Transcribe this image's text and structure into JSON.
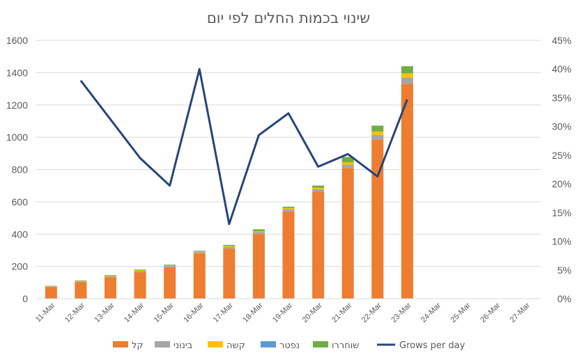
{
  "chart_data": {
    "type": "bar",
    "title": "שינוי בכמות החלים לפי יום",
    "categories": [
      "11-Mar",
      "12-Mar",
      "13-Mar",
      "14-Mar",
      "15-Mar",
      "16-Mar",
      "17-Mar",
      "18-Mar",
      "19-Mar",
      "20-Mar",
      "21-Mar",
      "22-Mar",
      "23-Mar",
      "24-Mar",
      "25-Mar",
      "26-Mar",
      "27-Mar"
    ],
    "stacked": true,
    "ylim": [
      0,
      1600
    ],
    "yticks": [
      0,
      200,
      400,
      600,
      800,
      1000,
      1200,
      1400,
      1600
    ],
    "y2lim": [
      0,
      0.45
    ],
    "y2ticks": [
      "0%",
      "5%",
      "10%",
      "15%",
      "20%",
      "25%",
      "30%",
      "35%",
      "40%",
      "45%"
    ],
    "gridlines": true,
    "legend_position": "bottom",
    "series": [
      {
        "name": "קל",
        "color": "#ED7D31",
        "values": [
          73,
          103,
          132,
          165,
          195,
          280,
          310,
          400,
          540,
          660,
          810,
          985,
          1330,
          null,
          null,
          null,
          null
        ]
      },
      {
        "name": "בינוני",
        "color": "#A5A5A5",
        "values": [
          3,
          5,
          6,
          8,
          8,
          8,
          10,
          12,
          15,
          18,
          20,
          30,
          40,
          null,
          null,
          null,
          null
        ]
      },
      {
        "name": "קשה",
        "color": "#FFC000",
        "values": [
          2,
          3,
          4,
          4,
          4,
          5,
          6,
          6,
          7,
          10,
          15,
          20,
          25,
          null,
          null,
          null,
          null
        ]
      },
      {
        "name": "נפטר",
        "color": "#5B9BD5",
        "values": [
          0,
          0,
          0,
          0,
          0,
          0,
          0,
          0,
          0,
          0,
          0,
          1,
          1,
          null,
          null,
          null,
          null
        ]
      },
      {
        "name": "שוחררו",
        "color": "#70AD47",
        "values": [
          2,
          3,
          4,
          4,
          4,
          4,
          7,
          12,
          8,
          13,
          33,
          36,
          44,
          null,
          null,
          null,
          null
        ]
      }
    ],
    "line_series": {
      "name": "Grows per day",
      "color": "#264478",
      "axis": "secondary",
      "values": [
        null,
        0.38,
        null,
        0.245,
        0.197,
        0.4,
        0.13,
        0.285,
        0.323,
        0.23,
        0.252,
        0.213,
        0.347,
        null,
        null,
        null,
        null
      ]
    }
  }
}
